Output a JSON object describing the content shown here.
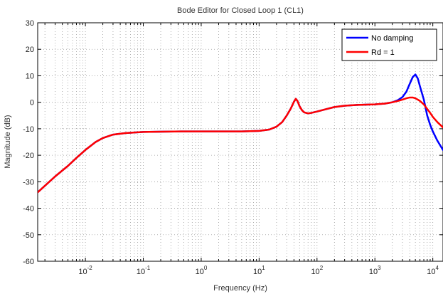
{
  "chart_data": {
    "type": "line",
    "title": "Bode Editor for Closed Loop 1 (CL1)",
    "xlabel": "Frequency (Hz)",
    "ylabel": "Magnitude (dB)",
    "xscale": "log",
    "xlim": [
      0.0015,
      15000
    ],
    "ylim": [
      -60,
      30
    ],
    "yticks": [
      -60,
      -50,
      -40,
      -30,
      -20,
      -10,
      0,
      10,
      20,
      30
    ],
    "xticks": [
      {
        "value": 0.01,
        "base": "10",
        "exp": "-2"
      },
      {
        "value": 0.1,
        "base": "10",
        "exp": "-1"
      },
      {
        "value": 1,
        "base": "10",
        "exp": "0"
      },
      {
        "value": 10,
        "base": "10",
        "exp": "1"
      },
      {
        "value": 100,
        "base": "10",
        "exp": "2"
      },
      {
        "value": 1000,
        "base": "10",
        "exp": "3"
      },
      {
        "value": 10000,
        "base": "10",
        "exp": "4"
      }
    ],
    "grid": true,
    "legend_position": "top-right",
    "series": [
      {
        "name": "No damping",
        "color": "#0000ff",
        "x": [
          0.0015,
          0.002,
          0.003,
          0.005,
          0.007,
          0.01,
          0.015,
          0.02,
          0.03,
          0.05,
          0.1,
          0.2,
          0.5,
          1,
          2,
          5,
          10,
          15,
          20,
          25,
          30,
          35,
          40,
          43,
          46,
          50,
          55,
          60,
          70,
          80,
          100,
          150,
          200,
          300,
          500,
          700,
          1000,
          1500,
          2000,
          2500,
          3000,
          3500,
          4000,
          4500,
          5000,
          5500,
          6000,
          7000,
          8000,
          9000,
          10000,
          12000,
          15000
        ],
        "y": [
          -34,
          -31.5,
          -28,
          -24,
          -21,
          -18,
          -15,
          -13.5,
          -12.2,
          -11.6,
          -11.2,
          -11.1,
          -11,
          -11,
          -11,
          -11,
          -10.8,
          -10.3,
          -9.2,
          -7.5,
          -5,
          -2.5,
          0.2,
          1.3,
          0.5,
          -1.5,
          -3,
          -3.8,
          -4.2,
          -4,
          -3.5,
          -2.5,
          -1.8,
          -1.3,
          -1,
          -0.9,
          -0.8,
          -0.5,
          0,
          0.8,
          2,
          4,
          7,
          9.5,
          10.5,
          9,
          6,
          1,
          -5,
          -8.5,
          -11,
          -14.5,
          -18
        ]
      },
      {
        "name": "Rd = 1",
        "color": "#ff0000",
        "x": [
          0.0015,
          0.002,
          0.003,
          0.005,
          0.007,
          0.01,
          0.015,
          0.02,
          0.03,
          0.05,
          0.1,
          0.2,
          0.5,
          1,
          2,
          5,
          10,
          15,
          20,
          25,
          30,
          35,
          40,
          43,
          46,
          50,
          55,
          60,
          70,
          80,
          100,
          150,
          200,
          300,
          500,
          700,
          1000,
          1500,
          2000,
          2500,
          3000,
          3500,
          4000,
          4500,
          5000,
          5500,
          6000,
          7000,
          8000,
          9000,
          10000,
          12000,
          15000
        ],
        "y": [
          -34,
          -31.5,
          -28,
          -24,
          -21,
          -18,
          -15,
          -13.5,
          -12.2,
          -11.6,
          -11.2,
          -11.1,
          -11,
          -11,
          -11,
          -11,
          -10.8,
          -10.3,
          -9.2,
          -7.5,
          -5,
          -2.5,
          0.2,
          1.3,
          0.5,
          -1.5,
          -3,
          -3.8,
          -4.2,
          -4,
          -3.5,
          -2.5,
          -1.8,
          -1.3,
          -1,
          -0.9,
          -0.8,
          -0.5,
          0,
          0.5,
          1,
          1.5,
          1.8,
          1.8,
          1.5,
          1,
          0.5,
          -0.8,
          -2.5,
          -4,
          -5.5,
          -7.5,
          -9.5
        ]
      }
    ]
  }
}
